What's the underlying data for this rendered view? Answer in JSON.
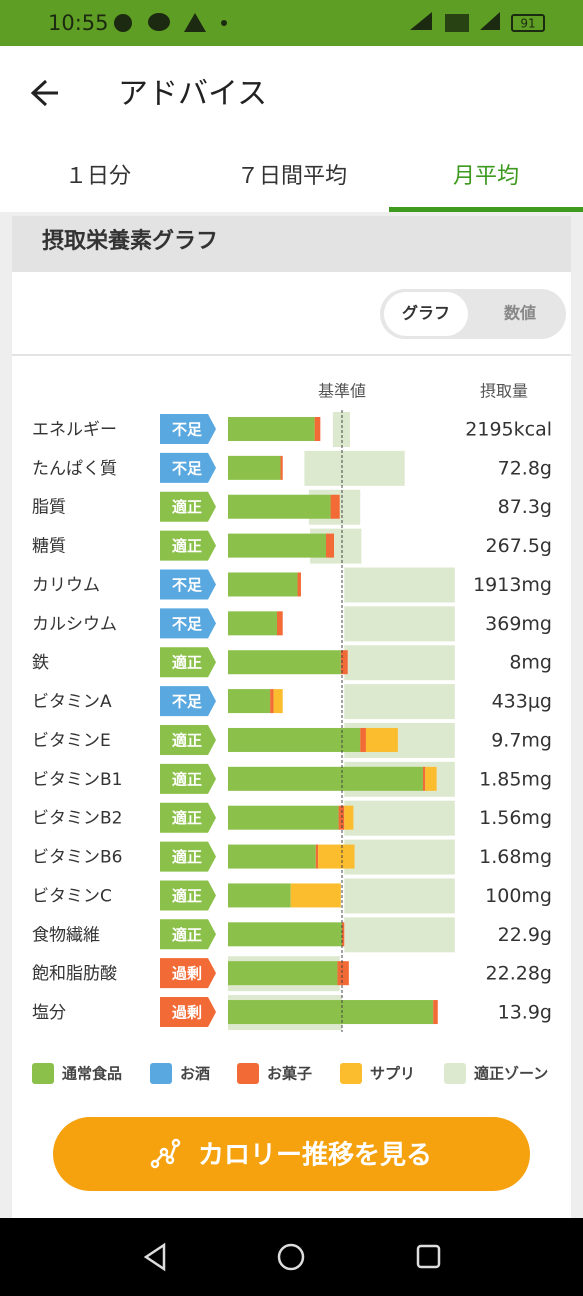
{
  "status_bar": {
    "time": "10:55",
    "battery": "91"
  },
  "header": {
    "title": "アドバイス"
  },
  "tabs": [
    "１日分",
    "７日間平均",
    "月平均"
  ],
  "section_title": "摂取栄養素グラフ",
  "toggle": [
    "グラフ",
    "数値"
  ],
  "chart_data": {
    "type": "stacked-bar",
    "reference_label": "基準値",
    "value_header": "摂取量",
    "reference": 100,
    "xlim": [
      0,
      200
    ],
    "categories": [
      "エネルギー",
      "たんぱく質",
      "脂質",
      "糖質",
      "カリウム",
      "カルシウム",
      "鉄",
      "ビタミンA",
      "ビタミンE",
      "ビタミンB1",
      "ビタミンB2",
      "ビタミンB6",
      "ビタミンC",
      "食物繊維",
      "飽和脂肪酸",
      "塩分"
    ],
    "status": [
      {
        "label": "不足",
        "color": "#5aa8e0"
      },
      {
        "label": "不足",
        "color": "#5aa8e0"
      },
      {
        "label": "適正",
        "color": "#8bc04a"
      },
      {
        "label": "適正",
        "color": "#8bc04a"
      },
      {
        "label": "不足",
        "color": "#5aa8e0"
      },
      {
        "label": "不足",
        "color": "#5aa8e0"
      },
      {
        "label": "適正",
        "color": "#8bc04a"
      },
      {
        "label": "不足",
        "color": "#5aa8e0"
      },
      {
        "label": "適正",
        "color": "#8bc04a"
      },
      {
        "label": "適正",
        "color": "#8bc04a"
      },
      {
        "label": "適正",
        "color": "#8bc04a"
      },
      {
        "label": "適正",
        "color": "#8bc04a"
      },
      {
        "label": "適正",
        "color": "#8bc04a"
      },
      {
        "label": "適正",
        "color": "#8bc04a"
      },
      {
        "label": "過剰",
        "color": "#f26a35"
      },
      {
        "label": "過剰",
        "color": "#f26a35"
      }
    ],
    "intake": [
      "2195kcal",
      "72.8g",
      "87.3g",
      "267.5g",
      "1913mg",
      "369mg",
      "8mg",
      "433μg",
      "9.7mg",
      "1.85mg",
      "1.56mg",
      "1.68mg",
      "100mg",
      "22.9g",
      "22.28g",
      "13.9g"
    ],
    "series": [
      {
        "name": "通常食品",
        "color": "#8bc04a",
        "values": [
          76,
          46,
          90,
          86,
          61,
          43,
          99,
          37,
          116,
          171,
          97,
          77,
          55,
          100,
          96,
          180
        ]
      },
      {
        "name": "お酒",
        "color": "#5aa8e0",
        "values": [
          0,
          0,
          0,
          0,
          0,
          0,
          0,
          0,
          0,
          0,
          0,
          0,
          0,
          0,
          0,
          0
        ]
      },
      {
        "name": "お菓子",
        "color": "#f26a35",
        "values": [
          5,
          2,
          8,
          7,
          3,
          5,
          6,
          3,
          5,
          2,
          5,
          2,
          0,
          2,
          10,
          4
        ]
      },
      {
        "name": "サプリ",
        "color": "#fbbd2e",
        "values": [
          0,
          0,
          0,
          0,
          0,
          0,
          0,
          8,
          28,
          10,
          8,
          32,
          44,
          0,
          0,
          0
        ]
      }
    ],
    "zone": {
      "name": "適正ゾーン",
      "color": "#dde9cf",
      "low": [
        92,
        67,
        71,
        72,
        102,
        102,
        102,
        102,
        102,
        102,
        102,
        102,
        102,
        102,
        0,
        0
      ],
      "high": [
        107,
        155,
        116,
        117,
        199,
        199,
        199,
        199,
        199,
        199,
        199,
        199,
        199,
        199,
        98,
        100
      ]
    }
  },
  "button": {
    "label": "カロリー推移を見る"
  }
}
